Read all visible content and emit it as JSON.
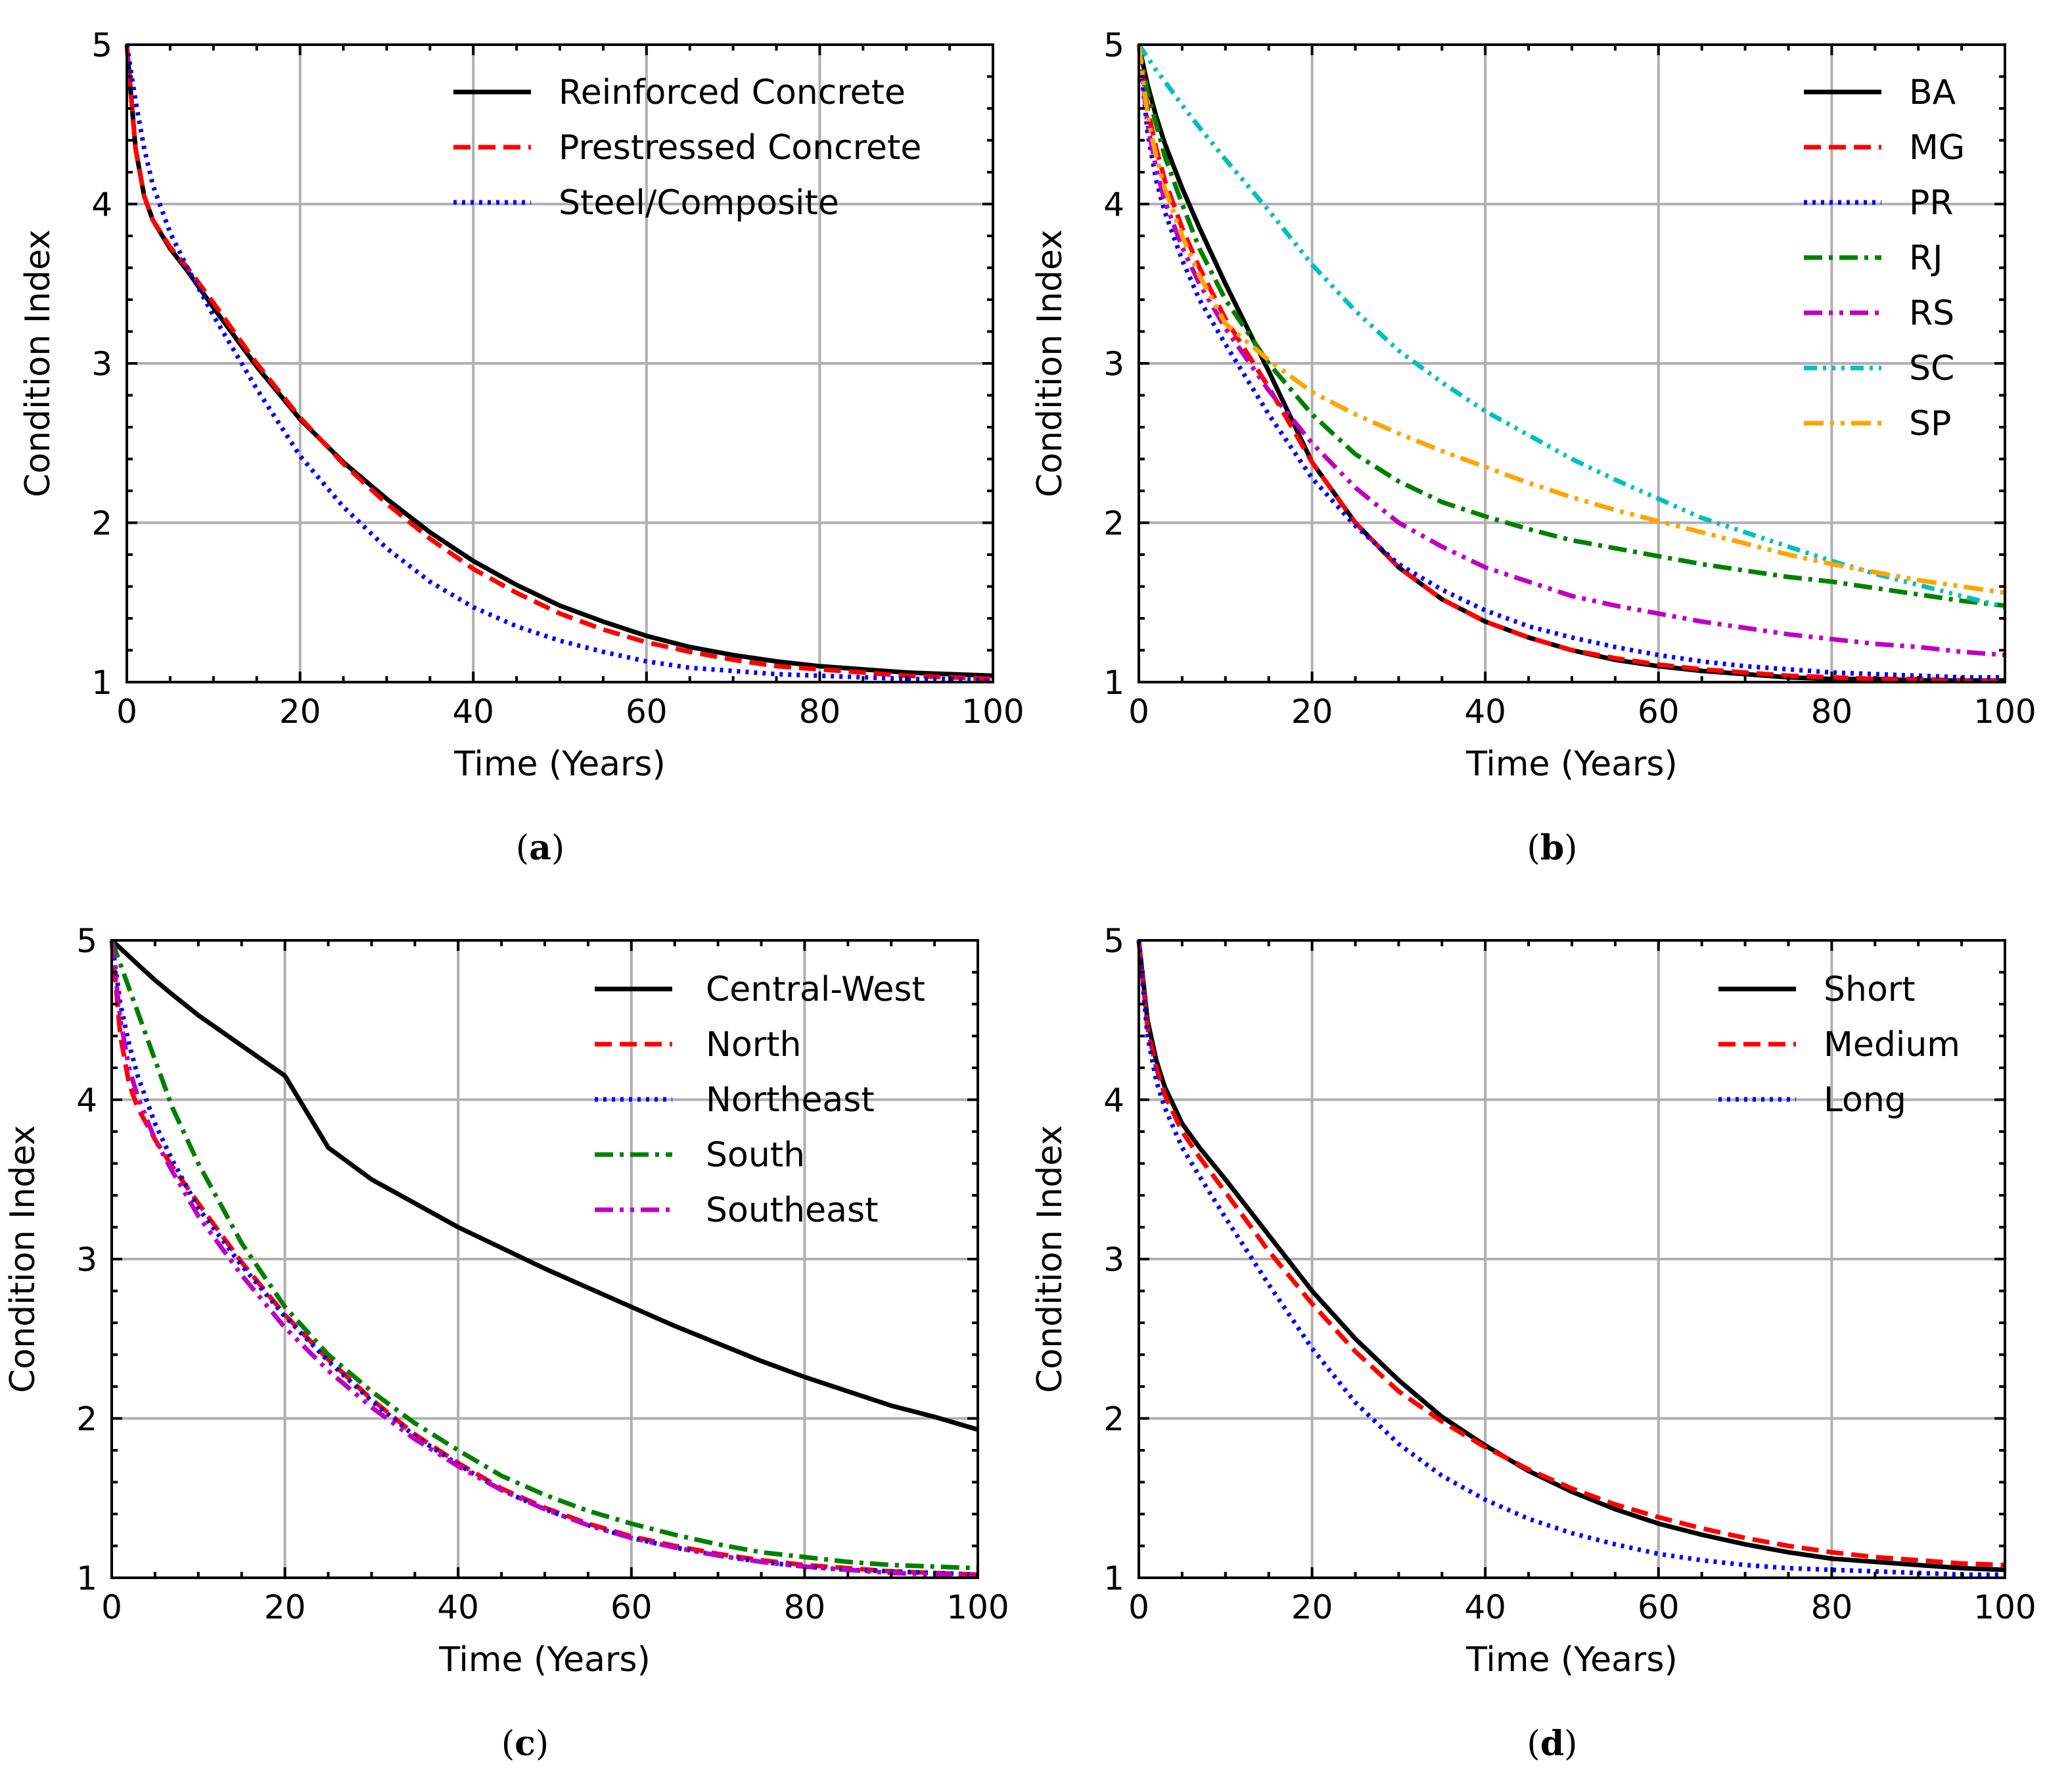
{
  "figure": {
    "background": "#ffffff"
  },
  "chart_data": [
    {
      "panel": "a",
      "caption": "(a)",
      "caption_letter": "a",
      "type": "line",
      "xlabel": "Time (Years)",
      "ylabel": "Condition Index",
      "xlim": [
        0,
        100
      ],
      "ylim": [
        1,
        5
      ],
      "xticks": [
        0,
        20,
        40,
        60,
        80,
        100
      ],
      "yticks": [
        1,
        2,
        3,
        4,
        5
      ],
      "grid": true,
      "legend": "top-right",
      "x": [
        0,
        1,
        2,
        3,
        5,
        7,
        10,
        15,
        20,
        25,
        30,
        35,
        40,
        45,
        50,
        55,
        60,
        65,
        70,
        75,
        80,
        85,
        90,
        95,
        100
      ],
      "series": [
        {
          "name": "Reinforced Concrete",
          "color": "#000000",
          "dash": "solid",
          "values": [
            5.0,
            4.35,
            4.05,
            3.9,
            3.72,
            3.58,
            3.35,
            2.98,
            2.65,
            2.38,
            2.15,
            1.94,
            1.76,
            1.61,
            1.48,
            1.38,
            1.29,
            1.22,
            1.17,
            1.13,
            1.1,
            1.08,
            1.06,
            1.05,
            1.04
          ]
        },
        {
          "name": "Prestressed Concrete",
          "color": "#ff0000",
          "dash": "dashed",
          "values": [
            5.0,
            4.35,
            4.05,
            3.9,
            3.73,
            3.6,
            3.38,
            3.0,
            2.66,
            2.37,
            2.12,
            1.9,
            1.71,
            1.56,
            1.43,
            1.33,
            1.25,
            1.19,
            1.14,
            1.1,
            1.08,
            1.06,
            1.04,
            1.03,
            1.02
          ]
        },
        {
          "name": "Steel/Composite",
          "color": "#0000ff",
          "dash": "dotted",
          "values": [
            5.0,
            4.65,
            4.35,
            4.12,
            3.82,
            3.6,
            3.3,
            2.84,
            2.42,
            2.1,
            1.84,
            1.63,
            1.47,
            1.35,
            1.26,
            1.19,
            1.13,
            1.09,
            1.07,
            1.05,
            1.04,
            1.03,
            1.02,
            1.02,
            1.01
          ]
        }
      ]
    },
    {
      "panel": "b",
      "caption": "(b)",
      "caption_letter": "b",
      "type": "line",
      "xlabel": "Time (Years)",
      "ylabel": "Condition Index",
      "xlim": [
        0,
        100
      ],
      "ylim": [
        1,
        5
      ],
      "xticks": [
        0,
        20,
        40,
        60,
        80,
        100
      ],
      "yticks": [
        1,
        2,
        3,
        4,
        5
      ],
      "grid": true,
      "legend": "top-right",
      "x": [
        0,
        1,
        2,
        3,
        5,
        7,
        10,
        15,
        20,
        25,
        30,
        35,
        40,
        45,
        50,
        55,
        60,
        65,
        70,
        75,
        80,
        85,
        90,
        95,
        100
      ],
      "series": [
        {
          "name": "BA",
          "color": "#000000",
          "dash": "solid",
          "values": [
            5.0,
            4.75,
            4.55,
            4.38,
            4.1,
            3.85,
            3.5,
            2.95,
            2.38,
            2.0,
            1.72,
            1.52,
            1.38,
            1.28,
            1.2,
            1.14,
            1.1,
            1.07,
            1.05,
            1.03,
            1.02,
            1.02,
            1.01,
            1.01,
            1.01
          ]
        },
        {
          "name": "MG",
          "color": "#ff0000",
          "dash": "dashed",
          "values": [
            5.0,
            4.6,
            4.35,
            4.15,
            3.85,
            3.6,
            3.28,
            2.85,
            2.38,
            2.0,
            1.72,
            1.52,
            1.38,
            1.28,
            1.2,
            1.15,
            1.11,
            1.08,
            1.06,
            1.04,
            1.03,
            1.02,
            1.02,
            1.01,
            1.01
          ]
        },
        {
          "name": "PR",
          "color": "#0000ff",
          "dash": "dotted",
          "values": [
            5.0,
            4.45,
            4.15,
            3.95,
            3.65,
            3.4,
            3.12,
            2.68,
            2.28,
            1.98,
            1.74,
            1.58,
            1.45,
            1.35,
            1.28,
            1.22,
            1.17,
            1.13,
            1.1,
            1.08,
            1.06,
            1.05,
            1.04,
            1.03,
            1.03
          ]
        },
        {
          "name": "RJ",
          "color": "#008000",
          "dash": "dashdot",
          "values": [
            5.0,
            4.7,
            4.5,
            4.3,
            4.0,
            3.72,
            3.4,
            3.0,
            2.68,
            2.43,
            2.26,
            2.13,
            2.04,
            1.96,
            1.89,
            1.84,
            1.79,
            1.74,
            1.7,
            1.66,
            1.63,
            1.59,
            1.55,
            1.51,
            1.48
          ]
        },
        {
          "name": "RS",
          "color": "#bf00bf",
          "dash": "dashdotdot",
          "values": [
            5.0,
            4.5,
            4.22,
            4.02,
            3.73,
            3.5,
            3.22,
            2.83,
            2.5,
            2.22,
            2.0,
            1.85,
            1.72,
            1.63,
            1.54,
            1.48,
            1.43,
            1.38,
            1.34,
            1.3,
            1.27,
            1.24,
            1.22,
            1.19,
            1.17
          ]
        },
        {
          "name": "SC",
          "color": "#00bfbf",
          "dash": "dashdotdotdot",
          "values": [
            5.0,
            4.92,
            4.84,
            4.77,
            4.62,
            4.48,
            4.28,
            3.96,
            3.62,
            3.33,
            3.08,
            2.88,
            2.7,
            2.55,
            2.4,
            2.27,
            2.15,
            2.03,
            1.94,
            1.85,
            1.76,
            1.68,
            1.61,
            1.54,
            1.47
          ]
        },
        {
          "name": "SP",
          "color": "#ffa500",
          "dash": "dashdotdotlong",
          "values": [
            5.0,
            4.55,
            4.3,
            4.1,
            3.8,
            3.55,
            3.25,
            3.02,
            2.82,
            2.68,
            2.56,
            2.45,
            2.35,
            2.25,
            2.16,
            2.08,
            2.01,
            1.94,
            1.87,
            1.8,
            1.74,
            1.69,
            1.64,
            1.6,
            1.56
          ]
        }
      ]
    },
    {
      "panel": "c",
      "caption": "(c)",
      "caption_letter": "c",
      "type": "line",
      "xlabel": "Time (Years)",
      "ylabel": "Condition Index",
      "xlim": [
        0,
        100
      ],
      "ylim": [
        1,
        5
      ],
      "xticks": [
        0,
        20,
        40,
        60,
        80,
        100
      ],
      "yticks": [
        1,
        2,
        3,
        4,
        5
      ],
      "grid": true,
      "legend": "top-right",
      "x": [
        0,
        1,
        2,
        3,
        5,
        7,
        10,
        15,
        20,
        25,
        30,
        35,
        40,
        45,
        50,
        55,
        60,
        65,
        70,
        75,
        80,
        85,
        90,
        95,
        100
      ],
      "series": [
        {
          "name": "Central-West",
          "color": "#000000",
          "dash": "solid",
          "values": [
            5.0,
            4.95,
            4.9,
            4.85,
            4.75,
            4.66,
            4.53,
            4.34,
            4.15,
            3.7,
            3.5,
            3.35,
            3.2,
            3.07,
            2.94,
            2.82,
            2.7,
            2.58,
            2.47,
            2.36,
            2.26,
            2.17,
            2.08,
            2.01,
            1.93
          ]
        },
        {
          "name": "North",
          "color": "#ff0000",
          "dash": "dashed",
          "values": [
            5.0,
            4.4,
            4.1,
            3.95,
            3.75,
            3.58,
            3.35,
            2.98,
            2.65,
            2.37,
            2.12,
            1.9,
            1.72,
            1.56,
            1.44,
            1.34,
            1.26,
            1.2,
            1.15,
            1.11,
            1.08,
            1.06,
            1.04,
            1.03,
            1.02
          ]
        },
        {
          "name": "Northeast",
          "color": "#0000ff",
          "dash": "dotted",
          "values": [
            5.0,
            4.6,
            4.35,
            4.15,
            3.85,
            3.62,
            3.32,
            2.96,
            2.64,
            2.36,
            2.11,
            1.89,
            1.71,
            1.55,
            1.43,
            1.33,
            1.25,
            1.19,
            1.14,
            1.1,
            1.07,
            1.05,
            1.04,
            1.03,
            1.02
          ]
        },
        {
          "name": "South",
          "color": "#008000",
          "dash": "dashdot",
          "values": [
            5.0,
            4.85,
            4.7,
            4.55,
            4.25,
            3.95,
            3.6,
            3.1,
            2.7,
            2.4,
            2.17,
            1.97,
            1.8,
            1.64,
            1.52,
            1.42,
            1.34,
            1.27,
            1.21,
            1.16,
            1.13,
            1.1,
            1.08,
            1.07,
            1.06
          ]
        },
        {
          "name": "Southeast",
          "color": "#bf00bf",
          "dash": "dashdotdot",
          "values": [
            5.0,
            4.5,
            4.2,
            4.02,
            3.75,
            3.55,
            3.27,
            2.9,
            2.57,
            2.3,
            2.07,
            1.87,
            1.7,
            1.55,
            1.43,
            1.33,
            1.25,
            1.19,
            1.14,
            1.1,
            1.07,
            1.05,
            1.03,
            1.02,
            1.02
          ]
        }
      ]
    },
    {
      "panel": "d",
      "caption": "(d)",
      "caption_letter": "d",
      "type": "line",
      "xlabel": "Time (Years)",
      "ylabel": "Condition Index",
      "xlim": [
        0,
        100
      ],
      "ylim": [
        1,
        5
      ],
      "xticks": [
        0,
        20,
        40,
        60,
        80,
        100
      ],
      "yticks": [
        1,
        2,
        3,
        4,
        5
      ],
      "grid": true,
      "legend": "top-right",
      "x": [
        0,
        1,
        2,
        3,
        5,
        7,
        10,
        15,
        20,
        25,
        30,
        35,
        40,
        45,
        50,
        55,
        60,
        65,
        70,
        75,
        80,
        85,
        90,
        95,
        100
      ],
      "series": [
        {
          "name": "Short",
          "color": "#000000",
          "dash": "solid",
          "values": [
            5.0,
            4.5,
            4.25,
            4.08,
            3.85,
            3.7,
            3.5,
            3.15,
            2.8,
            2.5,
            2.24,
            2.01,
            1.83,
            1.67,
            1.54,
            1.43,
            1.34,
            1.27,
            1.21,
            1.16,
            1.12,
            1.1,
            1.08,
            1.06,
            1.05
          ]
        },
        {
          "name": "Medium",
          "color": "#ff0000",
          "dash": "dashed",
          "values": [
            5.0,
            4.45,
            4.2,
            4.03,
            3.8,
            3.64,
            3.42,
            3.05,
            2.72,
            2.42,
            2.17,
            1.98,
            1.82,
            1.68,
            1.56,
            1.46,
            1.38,
            1.31,
            1.25,
            1.2,
            1.16,
            1.13,
            1.11,
            1.09,
            1.08
          ]
        },
        {
          "name": "Long",
          "color": "#0000ff",
          "dash": "dotted",
          "values": [
            5.0,
            4.4,
            4.12,
            3.95,
            3.7,
            3.52,
            3.26,
            2.84,
            2.44,
            2.1,
            1.84,
            1.64,
            1.49,
            1.37,
            1.28,
            1.21,
            1.15,
            1.11,
            1.08,
            1.06,
            1.05,
            1.04,
            1.03,
            1.02,
            1.02
          ]
        }
      ]
    }
  ]
}
